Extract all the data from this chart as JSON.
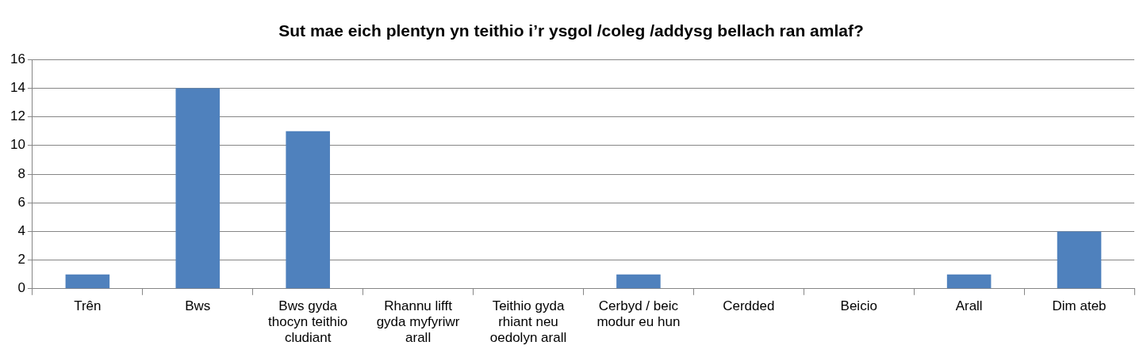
{
  "chart_data": {
    "type": "bar",
    "title": "Sut mae eich plentyn yn teithio i’r ysgol /coleg /addysg bellach ran amlaf?",
    "categories": [
      "Trên",
      "Bws",
      "Bws gyda thocyn teithio cludiant",
      "Rhannu lifft gyda myfyriwr arall",
      "Teithio gyda rhiant neu oedolyn arall",
      "Cerbyd / beic modur eu hun",
      "Cerdded",
      "Beicio",
      "Arall",
      "Dim ateb"
    ],
    "values": [
      1,
      14,
      11,
      0,
      0,
      1,
      0,
      0,
      1,
      4
    ],
    "color": "#4f81bd",
    "ylim": [
      0,
      16
    ],
    "yticks": [
      0,
      2,
      4,
      6,
      8,
      10,
      12,
      14,
      16
    ],
    "grid": "y",
    "legend": false
  }
}
